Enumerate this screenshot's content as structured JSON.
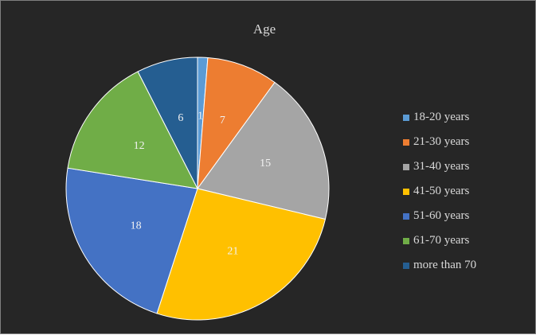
{
  "chart_data": {
    "type": "pie",
    "title": "Age",
    "categories": [
      "18-20 years",
      "21-30 years",
      "31-40 years",
      "41-50 years",
      "51-60 years",
      "61-70 years",
      "more than 70"
    ],
    "values": [
      1,
      7,
      15,
      21,
      18,
      12,
      6
    ],
    "colors": [
      "#5b9bd5",
      "#ed7d31",
      "#a5a5a5",
      "#ffc000",
      "#4472c4",
      "#70ad47",
      "#255e91"
    ],
    "legend_position": "right",
    "data_labels": true,
    "start_angle": "12 o'clock",
    "direction": "clockwise"
  }
}
